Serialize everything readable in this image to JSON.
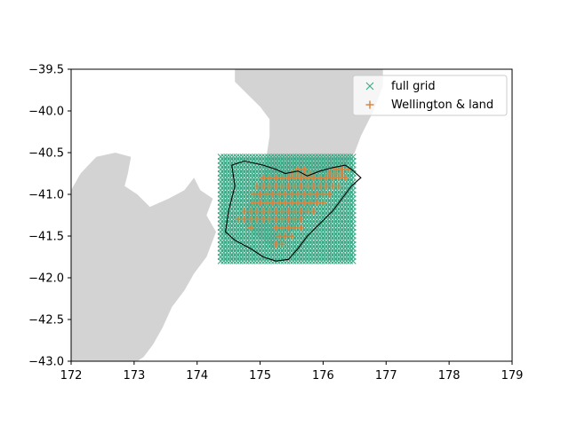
{
  "chart_data": {
    "type": "scatter",
    "title": "",
    "xlabel": "",
    "ylabel": "",
    "xlim": [
      172,
      179
    ],
    "ylim": [
      -43.0,
      -39.5
    ],
    "x_ticks": [
      "172",
      "173",
      "174",
      "175",
      "176",
      "177",
      "178",
      "179"
    ],
    "y_ticks": [
      "−39.5",
      "−40.0",
      "−40.5",
      "−41.0",
      "−41.5",
      "−42.0",
      "−42.5",
      "−43.0"
    ],
    "legend": {
      "placement": "top-right",
      "entries": [
        "full grid",
        "Wellington & land"
      ]
    },
    "grid": false,
    "colors": {
      "full_grid": "#3ba986",
      "wellington_land": "#d98540",
      "land": "#d3d3d3",
      "boundary": "#000000"
    },
    "series": [
      {
        "name": "full grid",
        "marker": "x",
        "grid": {
          "lon_start": 174.375,
          "lon_step": 0.05,
          "lon_count": 43,
          "lat_start": -40.55,
          "lat_step": -0.05,
          "lat_count": 26
        }
      },
      {
        "name": "Wellington & land",
        "marker": "+",
        "points": [
          [
            175.6,
            -40.7
          ],
          [
            175.7,
            -40.7
          ],
          [
            176.2,
            -40.7
          ],
          [
            176.3,
            -40.7
          ],
          [
            176.4,
            -40.7
          ],
          [
            175.5,
            -40.75
          ],
          [
            175.6,
            -40.75
          ],
          [
            175.7,
            -40.75
          ],
          [
            175.8,
            -40.75
          ],
          [
            176.1,
            -40.75
          ],
          [
            176.2,
            -40.75
          ],
          [
            176.3,
            -40.75
          ],
          [
            175.05,
            -40.8
          ],
          [
            175.15,
            -40.8
          ],
          [
            175.25,
            -40.8
          ],
          [
            175.35,
            -40.8
          ],
          [
            175.45,
            -40.8
          ],
          [
            175.55,
            -40.8
          ],
          [
            175.65,
            -40.8
          ],
          [
            175.75,
            -40.8
          ],
          [
            175.85,
            -40.8
          ],
          [
            175.95,
            -40.8
          ],
          [
            176.05,
            -40.8
          ],
          [
            176.15,
            -40.8
          ],
          [
            176.25,
            -40.8
          ],
          [
            176.35,
            -40.8
          ],
          [
            174.95,
            -40.9
          ],
          [
            175.05,
            -40.9
          ],
          [
            175.15,
            -40.9
          ],
          [
            175.25,
            -40.9
          ],
          [
            175.35,
            -40.9
          ],
          [
            175.45,
            -40.9
          ],
          [
            175.55,
            -40.9
          ],
          [
            175.65,
            -40.9
          ],
          [
            175.75,
            -40.9
          ],
          [
            175.85,
            -40.9
          ],
          [
            175.95,
            -40.9
          ],
          [
            176.05,
            -40.9
          ],
          [
            176.15,
            -40.9
          ],
          [
            176.25,
            -40.9
          ],
          [
            174.9,
            -41.0
          ],
          [
            175.0,
            -41.0
          ],
          [
            175.1,
            -41.0
          ],
          [
            175.2,
            -41.0
          ],
          [
            175.3,
            -41.0
          ],
          [
            175.4,
            -41.0
          ],
          [
            175.5,
            -41.0
          ],
          [
            175.6,
            -41.0
          ],
          [
            175.7,
            -41.0
          ],
          [
            175.8,
            -41.0
          ],
          [
            175.9,
            -41.0
          ],
          [
            176.0,
            -41.0
          ],
          [
            176.1,
            -41.0
          ],
          [
            174.9,
            -41.1
          ],
          [
            175.0,
            -41.1
          ],
          [
            175.1,
            -41.1
          ],
          [
            175.2,
            -41.1
          ],
          [
            175.3,
            -41.1
          ],
          [
            175.4,
            -41.1
          ],
          [
            175.5,
            -41.1
          ],
          [
            175.6,
            -41.1
          ],
          [
            175.7,
            -41.1
          ],
          [
            175.8,
            -41.1
          ],
          [
            175.9,
            -41.1
          ],
          [
            176.0,
            -41.1
          ],
          [
            174.75,
            -41.2
          ],
          [
            174.85,
            -41.2
          ],
          [
            174.95,
            -41.2
          ],
          [
            175.05,
            -41.2
          ],
          [
            175.15,
            -41.2
          ],
          [
            175.25,
            -41.2
          ],
          [
            175.35,
            -41.2
          ],
          [
            175.45,
            -41.2
          ],
          [
            175.55,
            -41.2
          ],
          [
            175.65,
            -41.2
          ],
          [
            175.75,
            -41.2
          ],
          [
            175.85,
            -41.2
          ],
          [
            174.65,
            -41.3
          ],
          [
            174.75,
            -41.3
          ],
          [
            174.85,
            -41.3
          ],
          [
            174.95,
            -41.3
          ],
          [
            175.05,
            -41.3
          ],
          [
            175.15,
            -41.3
          ],
          [
            175.25,
            -41.3
          ],
          [
            175.35,
            -41.3
          ],
          [
            175.45,
            -41.3
          ],
          [
            175.55,
            -41.3
          ],
          [
            175.65,
            -41.3
          ],
          [
            174.85,
            -41.4
          ],
          [
            175.25,
            -41.4
          ],
          [
            175.35,
            -41.4
          ],
          [
            175.45,
            -41.4
          ],
          [
            175.55,
            -41.4
          ],
          [
            175.65,
            -41.4
          ],
          [
            175.3,
            -41.5
          ],
          [
            175.4,
            -41.5
          ],
          [
            175.5,
            -41.5
          ],
          [
            175.25,
            -41.6
          ],
          [
            175.35,
            -41.6
          ]
        ]
      }
    ],
    "land_polygons": [
      {
        "name": "north-island",
        "points": [
          [
            174.6,
            -39.5
          ],
          [
            175.2,
            -39.5
          ],
          [
            176.7,
            -39.5
          ],
          [
            176.95,
            -39.5
          ],
          [
            176.95,
            -39.7
          ],
          [
            176.8,
            -40.0
          ],
          [
            176.6,
            -40.3
          ],
          [
            176.5,
            -40.5
          ],
          [
            176.3,
            -40.7
          ],
          [
            176.1,
            -40.9
          ],
          [
            175.95,
            -41.05
          ],
          [
            175.7,
            -41.25
          ],
          [
            175.5,
            -41.45
          ],
          [
            175.35,
            -41.6
          ],
          [
            175.2,
            -41.65
          ],
          [
            175.05,
            -41.55
          ],
          [
            174.85,
            -41.45
          ],
          [
            174.75,
            -41.35
          ],
          [
            174.8,
            -41.15
          ],
          [
            174.95,
            -40.95
          ],
          [
            175.05,
            -40.75
          ],
          [
            175.1,
            -40.55
          ],
          [
            175.15,
            -40.3
          ],
          [
            175.15,
            -40.1
          ],
          [
            175.0,
            -39.95
          ],
          [
            174.8,
            -39.8
          ],
          [
            174.6,
            -39.65
          ]
        ]
      },
      {
        "name": "south-island",
        "points": [
          [
            172.0,
            -40.95
          ],
          [
            172.15,
            -40.75
          ],
          [
            172.4,
            -40.55
          ],
          [
            172.7,
            -40.5
          ],
          [
            172.95,
            -40.55
          ],
          [
            172.9,
            -40.75
          ],
          [
            172.85,
            -40.9
          ],
          [
            173.05,
            -41.0
          ],
          [
            173.25,
            -41.15
          ],
          [
            173.55,
            -41.05
          ],
          [
            173.8,
            -40.95
          ],
          [
            173.95,
            -40.8
          ],
          [
            174.05,
            -40.95
          ],
          [
            174.25,
            -41.05
          ],
          [
            174.15,
            -41.25
          ],
          [
            174.3,
            -41.45
          ],
          [
            174.15,
            -41.75
          ],
          [
            173.95,
            -41.95
          ],
          [
            173.8,
            -42.15
          ],
          [
            173.6,
            -42.35
          ],
          [
            173.45,
            -42.6
          ],
          [
            173.3,
            -42.8
          ],
          [
            173.15,
            -42.95
          ],
          [
            173.05,
            -43.0
          ],
          [
            172.0,
            -43.0
          ]
        ]
      }
    ],
    "region_boundary": [
      [
        174.55,
        -40.65
      ],
      [
        174.75,
        -40.6
      ],
      [
        175.05,
        -40.65
      ],
      [
        175.25,
        -40.7
      ],
      [
        175.4,
        -40.75
      ],
      [
        175.6,
        -40.72
      ],
      [
        175.75,
        -40.78
      ],
      [
        175.95,
        -40.72
      ],
      [
        176.15,
        -40.68
      ],
      [
        176.35,
        -40.65
      ],
      [
        176.45,
        -40.7
      ],
      [
        176.6,
        -40.8
      ],
      [
        176.45,
        -40.9
      ],
      [
        176.3,
        -41.05
      ],
      [
        176.15,
        -41.2
      ],
      [
        175.95,
        -41.35
      ],
      [
        175.75,
        -41.5
      ],
      [
        175.6,
        -41.65
      ],
      [
        175.45,
        -41.78
      ],
      [
        175.25,
        -41.8
      ],
      [
        175.05,
        -41.75
      ],
      [
        174.85,
        -41.65
      ],
      [
        174.6,
        -41.55
      ],
      [
        174.45,
        -41.45
      ],
      [
        174.5,
        -41.2
      ],
      [
        174.6,
        -40.9
      ],
      [
        174.55,
        -40.65
      ]
    ]
  }
}
